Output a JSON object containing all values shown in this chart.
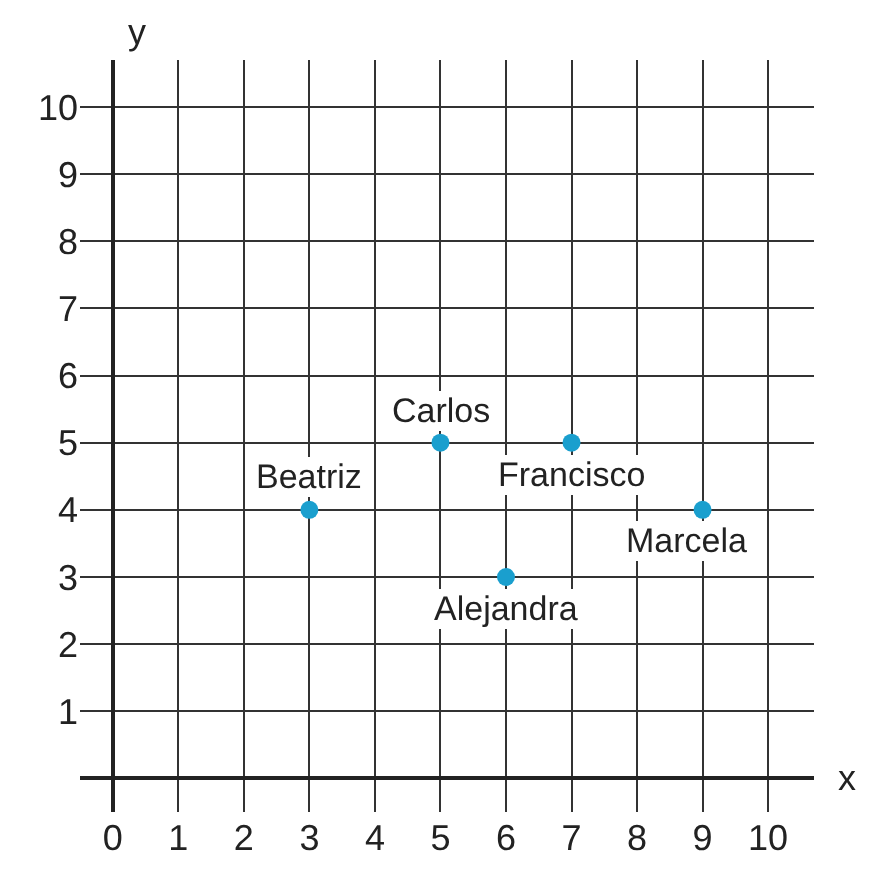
{
  "chart_data": {
    "type": "scatter",
    "xlabel": "x",
    "ylabel": "y",
    "x": [
      3,
      5,
      7,
      6,
      9
    ],
    "values": [
      4,
      5,
      5,
      3,
      4
    ],
    "color": "#1a9fce",
    "marker": "circle",
    "xlim": [
      -0.5,
      10.7
    ],
    "ylim": [
      -0.5,
      10.7
    ],
    "xticks": [
      0,
      1,
      2,
      3,
      4,
      5,
      6,
      7,
      8,
      9,
      10
    ],
    "yticks": [
      1,
      2,
      3,
      4,
      5,
      6,
      7,
      8,
      9,
      10
    ],
    "grid": true,
    "legend": false,
    "annotations": [
      {
        "text": "Beatriz",
        "x": 3,
        "y": 4
      },
      {
        "text": "Carlos",
        "x": 5,
        "y": 5
      },
      {
        "text": "Francisco",
        "x": 7,
        "y": 5
      },
      {
        "text": "Alejandra",
        "x": 6,
        "y": 3
      },
      {
        "text": "Marcela",
        "x": 9,
        "y": 4
      }
    ]
  }
}
